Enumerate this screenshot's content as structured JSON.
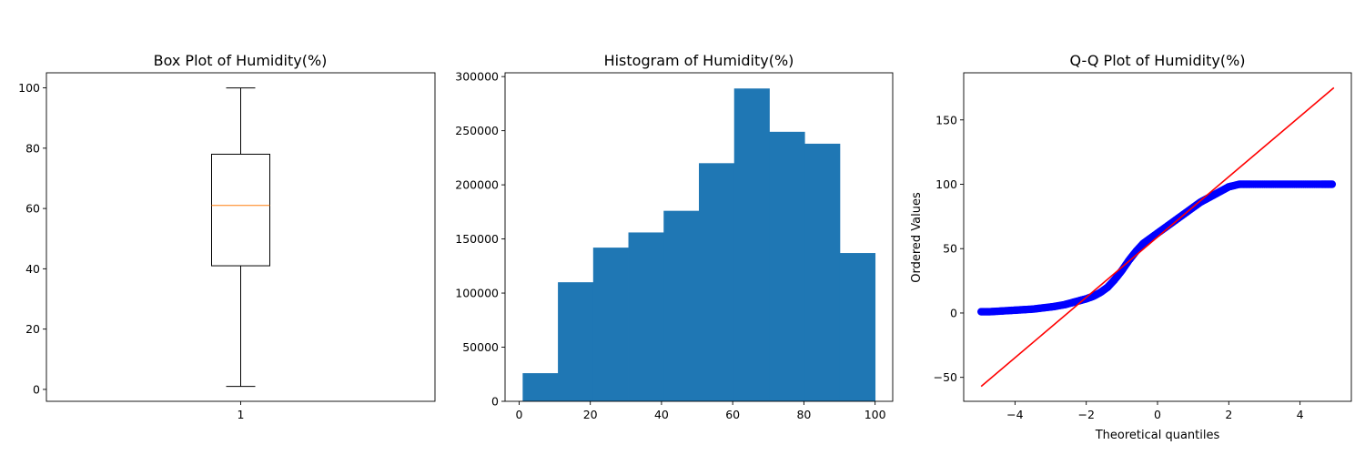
{
  "chart_data": [
    {
      "type": "box",
      "title": "Box Plot of Humidity(%)",
      "xlabel": "",
      "ylabel": "",
      "categories": [
        "1"
      ],
      "box": {
        "whisker_low": 1,
        "q1": 41,
        "median": 61,
        "q3": 78,
        "whisker_high": 100
      },
      "ylim": [
        -3.95,
        105
      ],
      "yticks": [
        0,
        20,
        40,
        60,
        80,
        100
      ],
      "grid": false,
      "colors": {
        "box": "#000000",
        "median": "#ff7f0e"
      }
    },
    {
      "type": "bar",
      "title": "Histogram of Humidity(%)",
      "xlabel": "",
      "ylabel": "",
      "bin_edges": [
        1,
        10.9,
        20.8,
        30.7,
        40.6,
        50.5,
        60.4,
        70.3,
        80.2,
        90.1,
        100
      ],
      "values": [
        26000,
        110000,
        142000,
        156000,
        176000,
        220000,
        289000,
        249000,
        238000,
        137000
      ],
      "xlim": [
        -3.95,
        104.95
      ],
      "ylim": [
        0,
        303500
      ],
      "xticks": [
        0,
        20,
        40,
        60,
        80,
        100
      ],
      "yticks": [
        0,
        50000,
        100000,
        150000,
        200000,
        250000,
        300000
      ],
      "grid": false,
      "colors": {
        "bar": "#1f77b4"
      }
    },
    {
      "type": "scatter",
      "title": "Q-Q Plot of Humidity(%)",
      "xlabel": "Theoretical quantiles",
      "ylabel": "Ordered Values",
      "points": {
        "x": [
          -4.95,
          -4.7,
          -4.4,
          -4.1,
          -3.8,
          -3.5,
          -3.2,
          -2.9,
          -2.6,
          -2.4,
          -2.2,
          -2.0,
          -1.8,
          -1.6,
          -1.4,
          -1.2,
          -1.0,
          -0.8,
          -0.6,
          -0.4,
          -0.2,
          0.0,
          0.2,
          0.4,
          0.6,
          0.8,
          1.0,
          1.2,
          1.4,
          1.6,
          1.8,
          2.0,
          2.3,
          2.6,
          3.0,
          3.4,
          3.8,
          4.2,
          4.6,
          4.9
        ],
        "y": [
          1,
          1,
          1.5,
          2,
          2.5,
          3,
          4,
          5,
          6.5,
          8,
          9.5,
          11,
          13,
          16,
          20,
          26,
          33,
          41,
          48,
          54,
          58,
          62,
          66,
          70,
          74,
          78,
          82,
          86,
          89,
          92,
          95,
          98,
          100,
          100,
          100,
          100,
          100,
          100,
          100,
          100
        ]
      },
      "fit_line": {
        "x": [
          -4.95,
          4.95
        ],
        "y": [
          -57,
          175
        ]
      },
      "xlim": [
        -5.44,
        5.44
      ],
      "ylim": [
        -68.6,
        186.6
      ],
      "xticks": [
        -4,
        -2,
        0,
        2,
        4
      ],
      "yticks": [
        -50,
        0,
        50,
        100,
        150
      ],
      "grid": false,
      "colors": {
        "points": "#0000ff",
        "line": "#ff0000"
      }
    }
  ]
}
